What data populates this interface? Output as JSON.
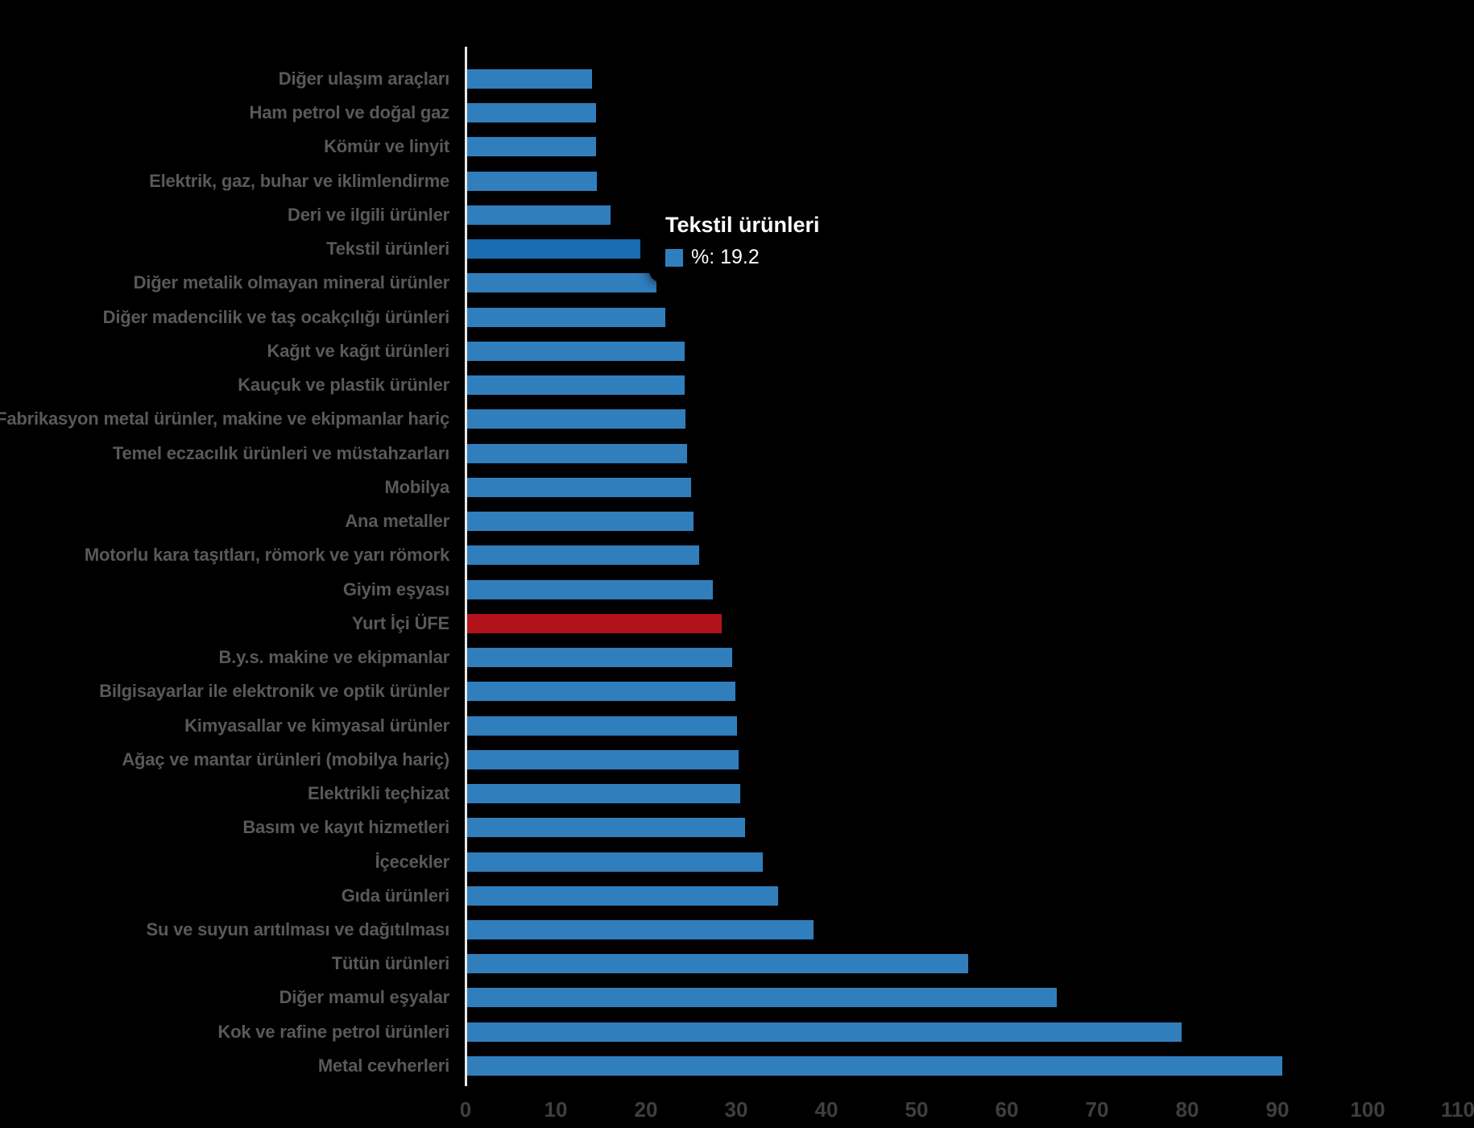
{
  "background": "#000000",
  "chart_data": {
    "type": "bar",
    "orientation": "horizontal",
    "title": "",
    "xlabel": "",
    "ylabel": "",
    "unit": "%",
    "xlim": [
      0,
      110
    ],
    "xticks": [
      0,
      10,
      20,
      30,
      40,
      50,
      60,
      70,
      80,
      90,
      100,
      110
    ],
    "grid": false,
    "legend_position": "none",
    "categories": [
      "Diğer ulaşım araçları",
      "Ham petrol ve doğal gaz",
      "Kömür ve linyit",
      "Elektrik, gaz, buhar ve iklimlendirme",
      "Deri ve ilgili ürünler",
      "Tekstil ürünleri",
      "Diğer metalik olmayan mineral ürünler",
      "Diğer madencilik ve taş ocakçılığı ürünleri",
      "Kağıt ve kağıt ürünleri",
      "Kauçuk ve plastik ürünler",
      "Fabrikasyon metal ürünler, makine ve ekipmanlar hariç",
      "Temel eczacılık ürünleri ve müstahzarları",
      "Mobilya",
      "Ana metaller",
      "Motorlu kara taşıtları, römork ve yarı römork",
      "Giyim eşyası",
      "Yurt İçi ÜFE",
      "B.y.s. makine ve ekipmanlar",
      "Bilgisayarlar ile elektronik ve optik ürünler",
      "Kimyasallar ve kimyasal ürünler",
      "Ağaç ve mantar ürünleri (mobilya hariç)",
      "Elektrikli teçhizat",
      "Basım ve kayıt hizmetleri",
      "İçecekler",
      "Gıda ürünleri",
      "Su ve suyun arıtılması ve dağıtılması",
      "Tütün ürünleri",
      "Diğer mamul eşyalar",
      "Kok ve rafine petrol ürünleri",
      "Metal cevherleri"
    ],
    "values": [
      13.8,
      14.3,
      14.3,
      14.4,
      15.9,
      19.2,
      21.0,
      22.0,
      24.1,
      24.1,
      24.2,
      24.4,
      24.8,
      25.1,
      25.7,
      27.2,
      28.2,
      29.4,
      29.7,
      29.9,
      30.1,
      30.3,
      30.8,
      32.8,
      34.5,
      38.4,
      55.5,
      65.4,
      79.2,
      90.4
    ],
    "highlighted_category": "Tekstil ürünleri",
    "highlighted_index": 5,
    "red_category": "Yurt İçi ÜFE",
    "red_index": 16
  },
  "tooltip": {
    "title": "Tekstil ürünleri",
    "metric_label": "%",
    "value": "19.2",
    "display": "%: 19.2"
  },
  "colors": {
    "bar": "#317EBD",
    "bar_highlight": "#1A6CB3",
    "bar_red": "#B2131A",
    "axis_line": "#E8E8E8",
    "category_label": "#595959",
    "tick_label": "#3F3F3F",
    "tooltip_bg": "#000000",
    "tooltip_text": "#FFFFFF"
  }
}
